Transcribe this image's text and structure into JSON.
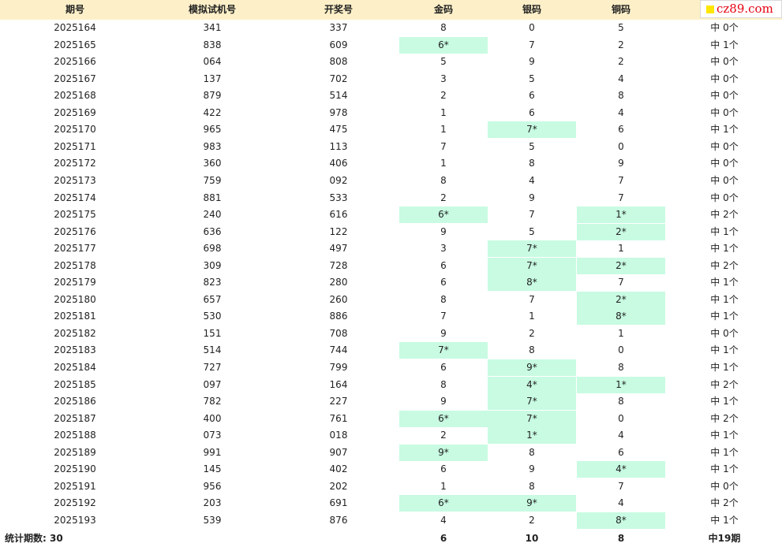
{
  "logo": {
    "text": "cz89.com",
    "text_color": "#e60012",
    "mark_color": "#ffe600"
  },
  "colors": {
    "header_bg": "#fdf0c8",
    "hit_bg": "#c8fbe2"
  },
  "headers": [
    "期号",
    "模拟试机号",
    "开奖号",
    "金码",
    "银码",
    "铜码",
    ""
  ],
  "rows": [
    {
      "period": "2025164",
      "sim": "341",
      "draw": "337",
      "gold": "8",
      "silver": "0",
      "bronze": "5",
      "hits": "中 0个",
      "gold_hit": false,
      "silver_hit": false,
      "bronze_hit": false
    },
    {
      "period": "2025165",
      "sim": "838",
      "draw": "609",
      "gold": "6*",
      "silver": "7",
      "bronze": "2",
      "hits": "中 1个",
      "gold_hit": true,
      "silver_hit": false,
      "bronze_hit": false
    },
    {
      "period": "2025166",
      "sim": "064",
      "draw": "808",
      "gold": "5",
      "silver": "9",
      "bronze": "2",
      "hits": "中 0个",
      "gold_hit": false,
      "silver_hit": false,
      "bronze_hit": false
    },
    {
      "period": "2025167",
      "sim": "137",
      "draw": "702",
      "gold": "3",
      "silver": "5",
      "bronze": "4",
      "hits": "中 0个",
      "gold_hit": false,
      "silver_hit": false,
      "bronze_hit": false
    },
    {
      "period": "2025168",
      "sim": "879",
      "draw": "514",
      "gold": "2",
      "silver": "6",
      "bronze": "8",
      "hits": "中 0个",
      "gold_hit": false,
      "silver_hit": false,
      "bronze_hit": false
    },
    {
      "period": "2025169",
      "sim": "422",
      "draw": "978",
      "gold": "1",
      "silver": "6",
      "bronze": "4",
      "hits": "中 0个",
      "gold_hit": false,
      "silver_hit": false,
      "bronze_hit": false
    },
    {
      "period": "2025170",
      "sim": "965",
      "draw": "475",
      "gold": "1",
      "silver": "7*",
      "bronze": "6",
      "hits": "中 1个",
      "gold_hit": false,
      "silver_hit": true,
      "bronze_hit": false
    },
    {
      "period": "2025171",
      "sim": "983",
      "draw": "113",
      "gold": "7",
      "silver": "5",
      "bronze": "0",
      "hits": "中 0个",
      "gold_hit": false,
      "silver_hit": false,
      "bronze_hit": false
    },
    {
      "period": "2025172",
      "sim": "360",
      "draw": "406",
      "gold": "1",
      "silver": "8",
      "bronze": "9",
      "hits": "中 0个",
      "gold_hit": false,
      "silver_hit": false,
      "bronze_hit": false
    },
    {
      "period": "2025173",
      "sim": "759",
      "draw": "092",
      "gold": "8",
      "silver": "4",
      "bronze": "7",
      "hits": "中 0个",
      "gold_hit": false,
      "silver_hit": false,
      "bronze_hit": false
    },
    {
      "period": "2025174",
      "sim": "881",
      "draw": "533",
      "gold": "2",
      "silver": "9",
      "bronze": "7",
      "hits": "中 0个",
      "gold_hit": false,
      "silver_hit": false,
      "bronze_hit": false
    },
    {
      "period": "2025175",
      "sim": "240",
      "draw": "616",
      "gold": "6*",
      "silver": "7",
      "bronze": "1*",
      "hits": "中 2个",
      "gold_hit": true,
      "silver_hit": false,
      "bronze_hit": true
    },
    {
      "period": "2025176",
      "sim": "636",
      "draw": "122",
      "gold": "9",
      "silver": "5",
      "bronze": "2*",
      "hits": "中 1个",
      "gold_hit": false,
      "silver_hit": false,
      "bronze_hit": true
    },
    {
      "period": "2025177",
      "sim": "698",
      "draw": "497",
      "gold": "3",
      "silver": "7*",
      "bronze": "1",
      "hits": "中 1个",
      "gold_hit": false,
      "silver_hit": true,
      "bronze_hit": false
    },
    {
      "period": "2025178",
      "sim": "309",
      "draw": "728",
      "gold": "6",
      "silver": "7*",
      "bronze": "2*",
      "hits": "中 2个",
      "gold_hit": false,
      "silver_hit": true,
      "bronze_hit": true
    },
    {
      "period": "2025179",
      "sim": "823",
      "draw": "280",
      "gold": "6",
      "silver": "8*",
      "bronze": "7",
      "hits": "中 1个",
      "gold_hit": false,
      "silver_hit": true,
      "bronze_hit": false
    },
    {
      "period": "2025180",
      "sim": "657",
      "draw": "260",
      "gold": "8",
      "silver": "7",
      "bronze": "2*",
      "hits": "中 1个",
      "gold_hit": false,
      "silver_hit": false,
      "bronze_hit": true
    },
    {
      "period": "2025181",
      "sim": "530",
      "draw": "886",
      "gold": "7",
      "silver": "1",
      "bronze": "8*",
      "hits": "中 1个",
      "gold_hit": false,
      "silver_hit": false,
      "bronze_hit": true
    },
    {
      "period": "2025182",
      "sim": "151",
      "draw": "708",
      "gold": "9",
      "silver": "2",
      "bronze": "1",
      "hits": "中 0个",
      "gold_hit": false,
      "silver_hit": false,
      "bronze_hit": false
    },
    {
      "period": "2025183",
      "sim": "514",
      "draw": "744",
      "gold": "7*",
      "silver": "8",
      "bronze": "0",
      "hits": "中 1个",
      "gold_hit": true,
      "silver_hit": false,
      "bronze_hit": false
    },
    {
      "period": "2025184",
      "sim": "727",
      "draw": "799",
      "gold": "6",
      "silver": "9*",
      "bronze": "8",
      "hits": "中 1个",
      "gold_hit": false,
      "silver_hit": true,
      "bronze_hit": false
    },
    {
      "period": "2025185",
      "sim": "097",
      "draw": "164",
      "gold": "8",
      "silver": "4*",
      "bronze": "1*",
      "hits": "中 2个",
      "gold_hit": false,
      "silver_hit": true,
      "bronze_hit": true
    },
    {
      "period": "2025186",
      "sim": "782",
      "draw": "227",
      "gold": "9",
      "silver": "7*",
      "bronze": "8",
      "hits": "中 1个",
      "gold_hit": false,
      "silver_hit": true,
      "bronze_hit": false
    },
    {
      "period": "2025187",
      "sim": "400",
      "draw": "761",
      "gold": "6*",
      "silver": "7*",
      "bronze": "0",
      "hits": "中 2个",
      "gold_hit": true,
      "silver_hit": true,
      "bronze_hit": false
    },
    {
      "period": "2025188",
      "sim": "073",
      "draw": "018",
      "gold": "2",
      "silver": "1*",
      "bronze": "4",
      "hits": "中 1个",
      "gold_hit": false,
      "silver_hit": true,
      "bronze_hit": false
    },
    {
      "period": "2025189",
      "sim": "991",
      "draw": "907",
      "gold": "9*",
      "silver": "8",
      "bronze": "6",
      "hits": "中 1个",
      "gold_hit": true,
      "silver_hit": false,
      "bronze_hit": false
    },
    {
      "period": "2025190",
      "sim": "145",
      "draw": "402",
      "gold": "6",
      "silver": "9",
      "bronze": "4*",
      "hits": "中 1个",
      "gold_hit": false,
      "silver_hit": false,
      "bronze_hit": true
    },
    {
      "period": "2025191",
      "sim": "956",
      "draw": "202",
      "gold": "1",
      "silver": "8",
      "bronze": "7",
      "hits": "中 0个",
      "gold_hit": false,
      "silver_hit": false,
      "bronze_hit": false
    },
    {
      "period": "2025192",
      "sim": "203",
      "draw": "691",
      "gold": "6*",
      "silver": "9*",
      "bronze": "4",
      "hits": "中 2个",
      "gold_hit": true,
      "silver_hit": true,
      "bronze_hit": false
    },
    {
      "period": "2025193",
      "sim": "539",
      "draw": "876",
      "gold": "4",
      "silver": "2",
      "bronze": "8*",
      "hits": "中 1个",
      "gold_hit": false,
      "silver_hit": false,
      "bronze_hit": true
    }
  ],
  "footer": {
    "label": "统计期数: 30",
    "gold_total": "6",
    "silver_total": "10",
    "bronze_total": "8",
    "hits_total": "中19期"
  }
}
